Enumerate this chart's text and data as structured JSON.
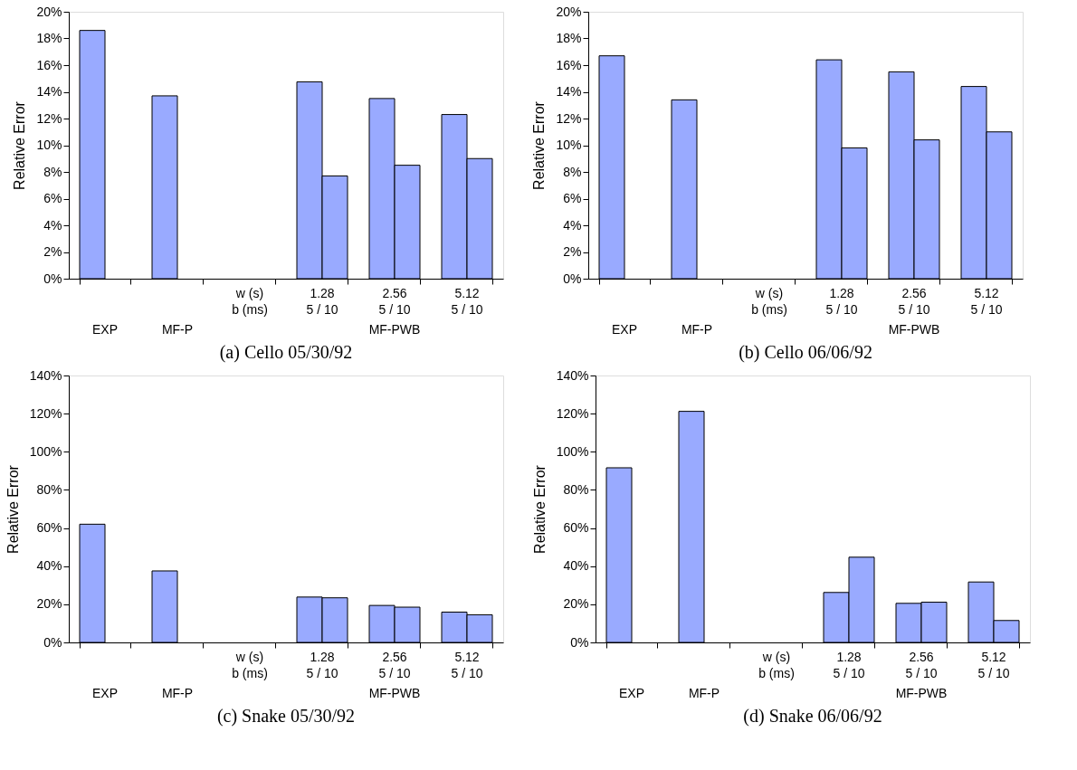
{
  "chart_data": [
    {
      "type": "bar",
      "title": "(a) Cello 05/30/92",
      "ylabel": "Relative Error",
      "categories": [
        null,
        null,
        "w (s)\nb (ms)",
        "1.28\n5 / 10",
        "2.56\n5 / 10",
        "5.12\n5 / 10"
      ],
      "series": [
        {
          "color": "#99aaff",
          "values": [
            18.6,
            13.7,
            null,
            14.75,
            13.5,
            12.3
          ]
        },
        {
          "color": "#99aaff",
          "values": [
            null,
            null,
            null,
            7.7,
            8.5,
            9.0
          ]
        }
      ],
      "ylim": [
        0,
        20
      ],
      "yticks": [
        {
          "value": 0,
          "label": "0%"
        },
        {
          "value": 2,
          "label": "2%"
        },
        {
          "value": 4,
          "label": "4%"
        },
        {
          "value": 6,
          "label": "6%"
        },
        {
          "value": 8,
          "label": "8%"
        },
        {
          "value": 10,
          "label": "10%"
        },
        {
          "value": 12,
          "label": "12%"
        },
        {
          "value": 14,
          "label": "14%"
        },
        {
          "value": 16,
          "label": "16%"
        },
        {
          "value": 18,
          "label": "18%"
        },
        {
          "value": 20,
          "label": "20%"
        }
      ],
      "annotations": [
        "EXP",
        "MF-P",
        "MF-PWB"
      ]
    },
    {
      "type": "bar",
      "title": "(b) Cello 06/06/92",
      "ylabel": "Relative Error",
      "categories": [
        null,
        null,
        "w (s)\nb (ms)",
        "1.28\n5 / 10",
        "2.56\n5 / 10",
        "5.12\n5 / 10"
      ],
      "series": [
        {
          "color": "#99aaff",
          "values": [
            16.7,
            13.4,
            null,
            16.4,
            15.5,
            14.4
          ]
        },
        {
          "color": "#99aaff",
          "values": [
            null,
            null,
            null,
            9.8,
            10.4,
            11.0
          ]
        }
      ],
      "ylim": [
        0,
        20
      ],
      "yticks": [
        {
          "value": 0,
          "label": "0%"
        },
        {
          "value": 2,
          "label": "2%"
        },
        {
          "value": 4,
          "label": "4%"
        },
        {
          "value": 6,
          "label": "6%"
        },
        {
          "value": 8,
          "label": "8%"
        },
        {
          "value": 10,
          "label": "10%"
        },
        {
          "value": 12,
          "label": "12%"
        },
        {
          "value": 14,
          "label": "14%"
        },
        {
          "value": 16,
          "label": "16%"
        },
        {
          "value": 18,
          "label": "18%"
        },
        {
          "value": 20,
          "label": "20%"
        }
      ],
      "annotations": [
        "EXP",
        "MF-P",
        "MF-PWB"
      ]
    },
    {
      "type": "bar",
      "title": "(c) Snake 05/30/92",
      "ylabel": "Relative Error",
      "categories": [
        null,
        null,
        "w (s)\nb (ms)",
        "1.28\n5 / 10",
        "2.56\n5 / 10",
        "5.12\n5 / 10"
      ],
      "series": [
        {
          "color": "#99aaff",
          "values": [
            62,
            37.5,
            null,
            23.8,
            19.4,
            15.9
          ]
        },
        {
          "color": "#99aaff",
          "values": [
            null,
            null,
            null,
            23.4,
            18.5,
            14.5
          ]
        }
      ],
      "ylim": [
        0,
        140
      ],
      "yticks": [
        {
          "value": 0,
          "label": "0%"
        },
        {
          "value": 20,
          "label": "20%"
        },
        {
          "value": 40,
          "label": "40%"
        },
        {
          "value": 60,
          "label": "60%"
        },
        {
          "value": 80,
          "label": "80%"
        },
        {
          "value": 100,
          "label": "100%"
        },
        {
          "value": 120,
          "label": "120%"
        },
        {
          "value": 140,
          "label": "140%"
        }
      ],
      "annotations": [
        "EXP",
        "MF-P",
        "MF-PWB"
      ]
    },
    {
      "type": "bar",
      "title": "(d) Snake 06/06/92",
      "ylabel": "Relative Error",
      "categories": [
        null,
        null,
        "w (s)\nb (ms)",
        "1.28\n5 / 10",
        "2.56\n5 / 10",
        "5.12\n5 / 10"
      ],
      "series": [
        {
          "color": "#99aaff",
          "values": [
            91.6,
            121.2,
            null,
            26.2,
            20.5,
            31.7
          ]
        },
        {
          "color": "#99aaff",
          "values": [
            null,
            null,
            null,
            44.7,
            21.1,
            11.5
          ]
        }
      ],
      "ylim": [
        0,
        140
      ],
      "yticks": [
        {
          "value": 0,
          "label": "0%"
        },
        {
          "value": 20,
          "label": "20%"
        },
        {
          "value": 40,
          "label": "40%"
        },
        {
          "value": 60,
          "label": "60%"
        },
        {
          "value": 80,
          "label": "80%"
        },
        {
          "value": 100,
          "label": "100%"
        },
        {
          "value": 120,
          "label": "120%"
        },
        {
          "value": 140,
          "label": "140%"
        }
      ],
      "annotations": [
        "EXP",
        "MF-P",
        "MF-PWB"
      ]
    }
  ]
}
